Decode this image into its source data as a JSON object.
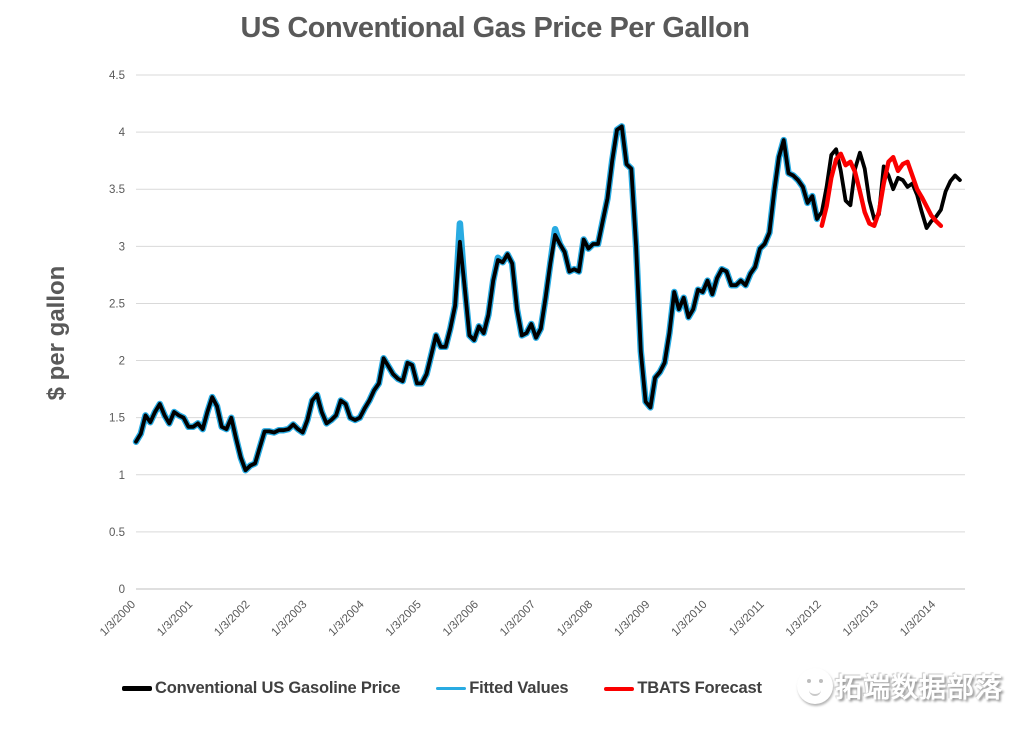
{
  "chart": {
    "title": "US Conventional Gas Price Per Gallon",
    "ylabel": "$ per gallon"
  },
  "watermark": {
    "text": "拓端数据部落",
    "logo": "cartoon-face-logo"
  },
  "colors": {
    "actual": "#000000",
    "fitted": "#29ABE2",
    "forecast": "#FB0000",
    "gridline": "#D9D9D9",
    "axis_line": "#BFBFBF",
    "axis_text": "#595959",
    "title_text": "#595959",
    "background": "#FFFFFF"
  },
  "chart_data": {
    "type": "line",
    "title": "US Conventional Gas Price Per Gallon",
    "xlabel": "",
    "ylabel": "$ per gallon",
    "ylim": [
      0,
      4.5
    ],
    "grid": "horizontal-only",
    "legend_position": "bottom",
    "y_tick_labels": [
      "0",
      "0.5",
      "1",
      "1.5",
      "2",
      "2.5",
      "3",
      "3.5",
      "4",
      "4.5"
    ],
    "x_tick_labels": [
      "1/3/2000",
      "1/3/2001",
      "1/3/2002",
      "1/3/2003",
      "1/3/2004",
      "1/3/2005",
      "1/3/2006",
      "1/3/2007",
      "1/3/2008",
      "1/3/2009",
      "1/3/2010",
      "1/3/2011",
      "1/3/2012",
      "1/3/2013",
      "1/3/2014"
    ],
    "x_unit": "monthly points, x_start = decimal year of first point",
    "series": [
      {
        "name": "Conventional US Gasoline Price",
        "color": "#000000",
        "x_start": 2000.0,
        "values": [
          1.29,
          1.36,
          1.52,
          1.46,
          1.55,
          1.62,
          1.52,
          1.45,
          1.55,
          1.52,
          1.5,
          1.42,
          1.42,
          1.45,
          1.4,
          1.55,
          1.68,
          1.6,
          1.42,
          1.4,
          1.5,
          1.32,
          1.15,
          1.04,
          1.08,
          1.1,
          1.24,
          1.38,
          1.38,
          1.37,
          1.39,
          1.39,
          1.4,
          1.44,
          1.4,
          1.37,
          1.48,
          1.65,
          1.7,
          1.55,
          1.45,
          1.48,
          1.52,
          1.65,
          1.62,
          1.5,
          1.48,
          1.5,
          1.58,
          1.65,
          1.74,
          1.8,
          2.02,
          1.95,
          1.88,
          1.84,
          1.82,
          1.98,
          1.96,
          1.8,
          1.8,
          1.88,
          2.05,
          2.22,
          2.12,
          2.12,
          2.28,
          2.48,
          3.04,
          2.65,
          2.22,
          2.18,
          2.3,
          2.24,
          2.4,
          2.7,
          2.88,
          2.86,
          2.93,
          2.85,
          2.45,
          2.22,
          2.24,
          2.32,
          2.2,
          2.28,
          2.55,
          2.85,
          3.1,
          3.02,
          2.95,
          2.78,
          2.8,
          2.78,
          3.06,
          2.98,
          3.02,
          3.02,
          3.22,
          3.42,
          3.75,
          4.02,
          4.05,
          3.72,
          3.68,
          3.0,
          2.08,
          1.64,
          1.59,
          1.85,
          1.9,
          1.98,
          2.24,
          2.6,
          2.45,
          2.55,
          2.38,
          2.45,
          2.62,
          2.6,
          2.7,
          2.58,
          2.72,
          2.8,
          2.78,
          2.66,
          2.66,
          2.7,
          2.66,
          2.76,
          2.82,
          2.98,
          3.02,
          3.12,
          3.48,
          3.78,
          3.93,
          3.64,
          3.62,
          3.58,
          3.52,
          3.38,
          3.44,
          3.24,
          3.3,
          3.52,
          3.8,
          3.85,
          3.66,
          3.4,
          3.36,
          3.68,
          3.82,
          3.68,
          3.4,
          3.24,
          3.28,
          3.7,
          3.62,
          3.5,
          3.6,
          3.58,
          3.52,
          3.55,
          3.45,
          3.3,
          3.16,
          3.22,
          3.26,
          3.32,
          3.48,
          3.57,
          3.62,
          3.58
        ]
      },
      {
        "name": "Fitted Values",
        "color": "#29ABE2",
        "x_start": 2000.0,
        "values": [
          1.29,
          1.36,
          1.52,
          1.46,
          1.55,
          1.62,
          1.52,
          1.45,
          1.55,
          1.52,
          1.5,
          1.42,
          1.42,
          1.45,
          1.4,
          1.55,
          1.68,
          1.6,
          1.42,
          1.4,
          1.5,
          1.32,
          1.15,
          1.04,
          1.08,
          1.1,
          1.24,
          1.38,
          1.38,
          1.37,
          1.39,
          1.39,
          1.4,
          1.44,
          1.4,
          1.37,
          1.48,
          1.65,
          1.7,
          1.55,
          1.45,
          1.48,
          1.52,
          1.65,
          1.62,
          1.5,
          1.48,
          1.5,
          1.58,
          1.65,
          1.74,
          1.8,
          2.02,
          1.95,
          1.88,
          1.84,
          1.82,
          1.98,
          1.96,
          1.8,
          1.8,
          1.88,
          2.05,
          2.22,
          2.12,
          2.12,
          2.28,
          2.48,
          3.2,
          2.65,
          2.22,
          2.18,
          2.3,
          2.24,
          2.4,
          2.7,
          2.9,
          2.86,
          2.93,
          2.85,
          2.45,
          2.22,
          2.24,
          2.32,
          2.2,
          2.28,
          2.55,
          2.85,
          3.15,
          3.02,
          2.95,
          2.78,
          2.8,
          2.78,
          3.06,
          2.98,
          3.02,
          3.02,
          3.22,
          3.42,
          3.75,
          4.02,
          4.05,
          3.72,
          3.68,
          3.0,
          2.08,
          1.64,
          1.59,
          1.85,
          1.9,
          1.98,
          2.24,
          2.6,
          2.45,
          2.55,
          2.38,
          2.45,
          2.62,
          2.6,
          2.7,
          2.58,
          2.72,
          2.8,
          2.78,
          2.66,
          2.66,
          2.7,
          2.66,
          2.76,
          2.82,
          2.98,
          3.02,
          3.12,
          3.48,
          3.78,
          3.93,
          3.64,
          3.62,
          3.58,
          3.52,
          3.38,
          3.44,
          3.24
        ]
      },
      {
        "name": "TBATS Forecast",
        "color": "#FB0000",
        "x_start": 2012.0,
        "values": [
          3.18,
          3.35,
          3.6,
          3.76,
          3.81,
          3.71,
          3.74,
          3.65,
          3.48,
          3.3,
          3.2,
          3.18,
          3.3,
          3.55,
          3.74,
          3.78,
          3.66,
          3.72,
          3.74,
          3.62,
          3.5,
          3.43,
          3.35,
          3.27,
          3.22,
          3.18
        ]
      }
    ]
  }
}
